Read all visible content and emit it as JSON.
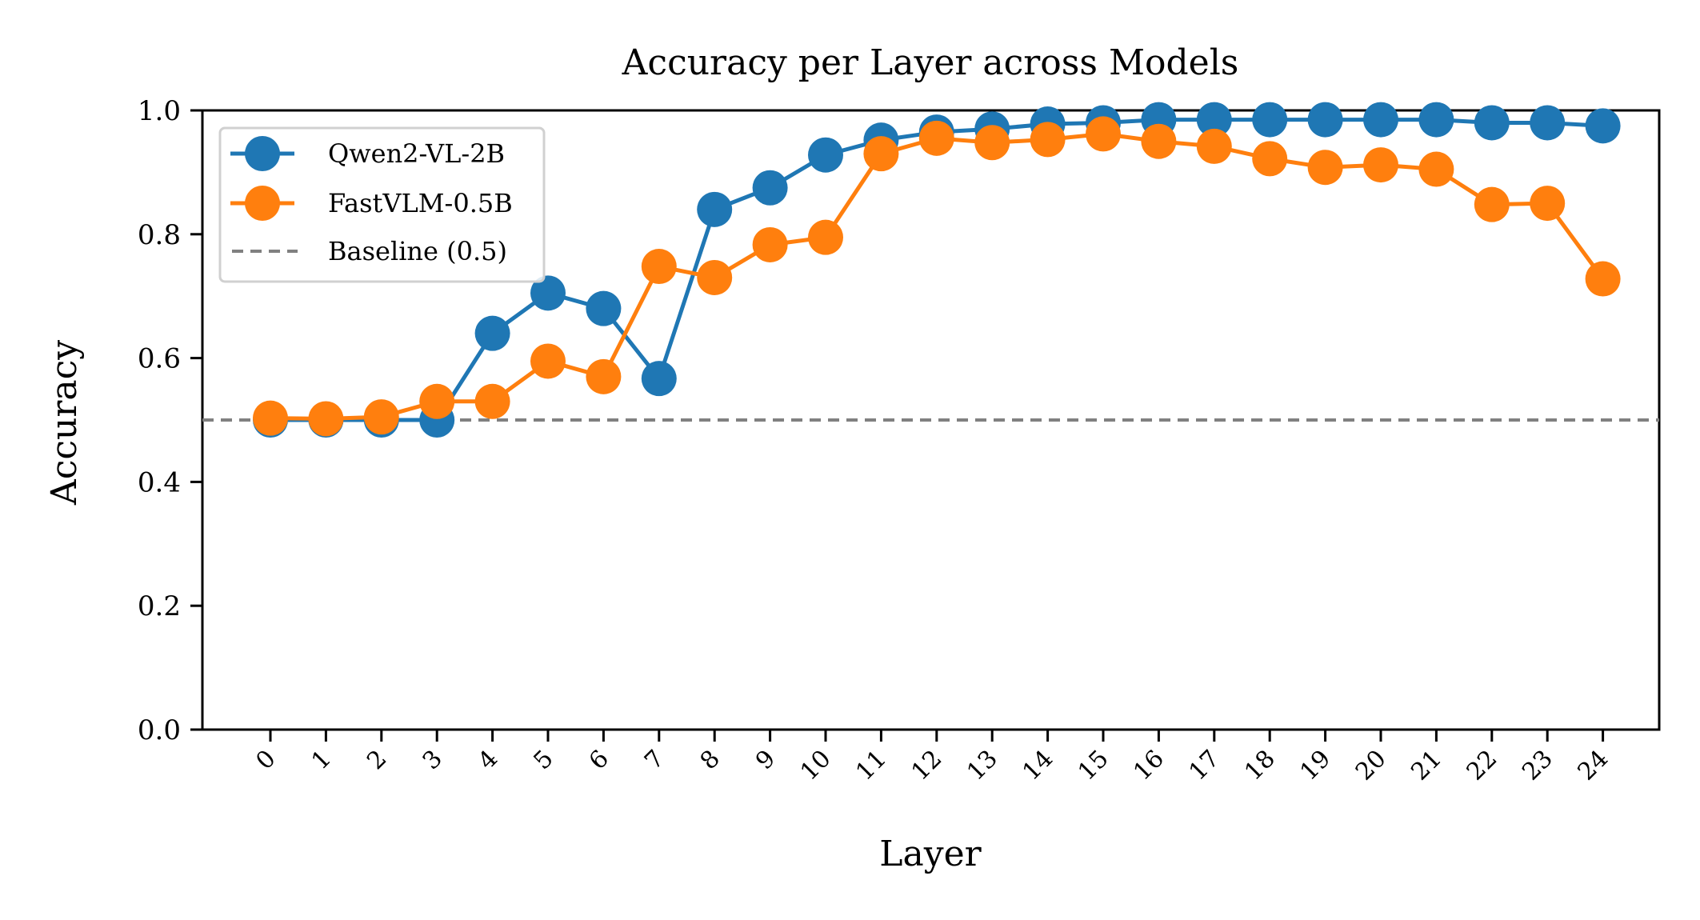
{
  "chart_data": {
    "type": "line",
    "title": "Accuracy per Layer across Models",
    "xlabel": "Layer",
    "ylabel": "Accuracy",
    "x": [
      0,
      1,
      2,
      3,
      4,
      5,
      6,
      7,
      8,
      9,
      10,
      11,
      12,
      13,
      14,
      15,
      16,
      17,
      18,
      19,
      20,
      21,
      22,
      23,
      24
    ],
    "ylim": [
      0.0,
      1.0
    ],
    "yticks": [
      0.0,
      0.2,
      0.4,
      0.6,
      0.8,
      1.0
    ],
    "ytick_labels": [
      "0.0",
      "0.2",
      "0.4",
      "0.6",
      "0.8",
      "1.0"
    ],
    "grid": false,
    "legend_position": "upper-left",
    "series": [
      {
        "name": "Qwen2-VL-2B",
        "color": "#1f77b4",
        "values": [
          0.5,
          0.5,
          0.5,
          0.5,
          0.64,
          0.705,
          0.68,
          0.567,
          0.84,
          0.875,
          0.928,
          0.952,
          0.965,
          0.97,
          0.978,
          0.98,
          0.985,
          0.985,
          0.985,
          0.985,
          0.985,
          0.985,
          0.98,
          0.98,
          0.975
        ]
      },
      {
        "name": "FastVLM-0.5B",
        "color": "#ff7f0e",
        "values": [
          0.503,
          0.502,
          0.505,
          0.53,
          0.53,
          0.595,
          0.57,
          0.748,
          0.73,
          0.783,
          0.795,
          0.93,
          0.955,
          0.948,
          0.953,
          0.962,
          0.95,
          0.942,
          0.922,
          0.908,
          0.912,
          0.905,
          0.848,
          0.85,
          0.728
        ]
      }
    ],
    "baseline": {
      "name": "Baseline (0.5)",
      "value": 0.5,
      "color": "#808080"
    }
  }
}
